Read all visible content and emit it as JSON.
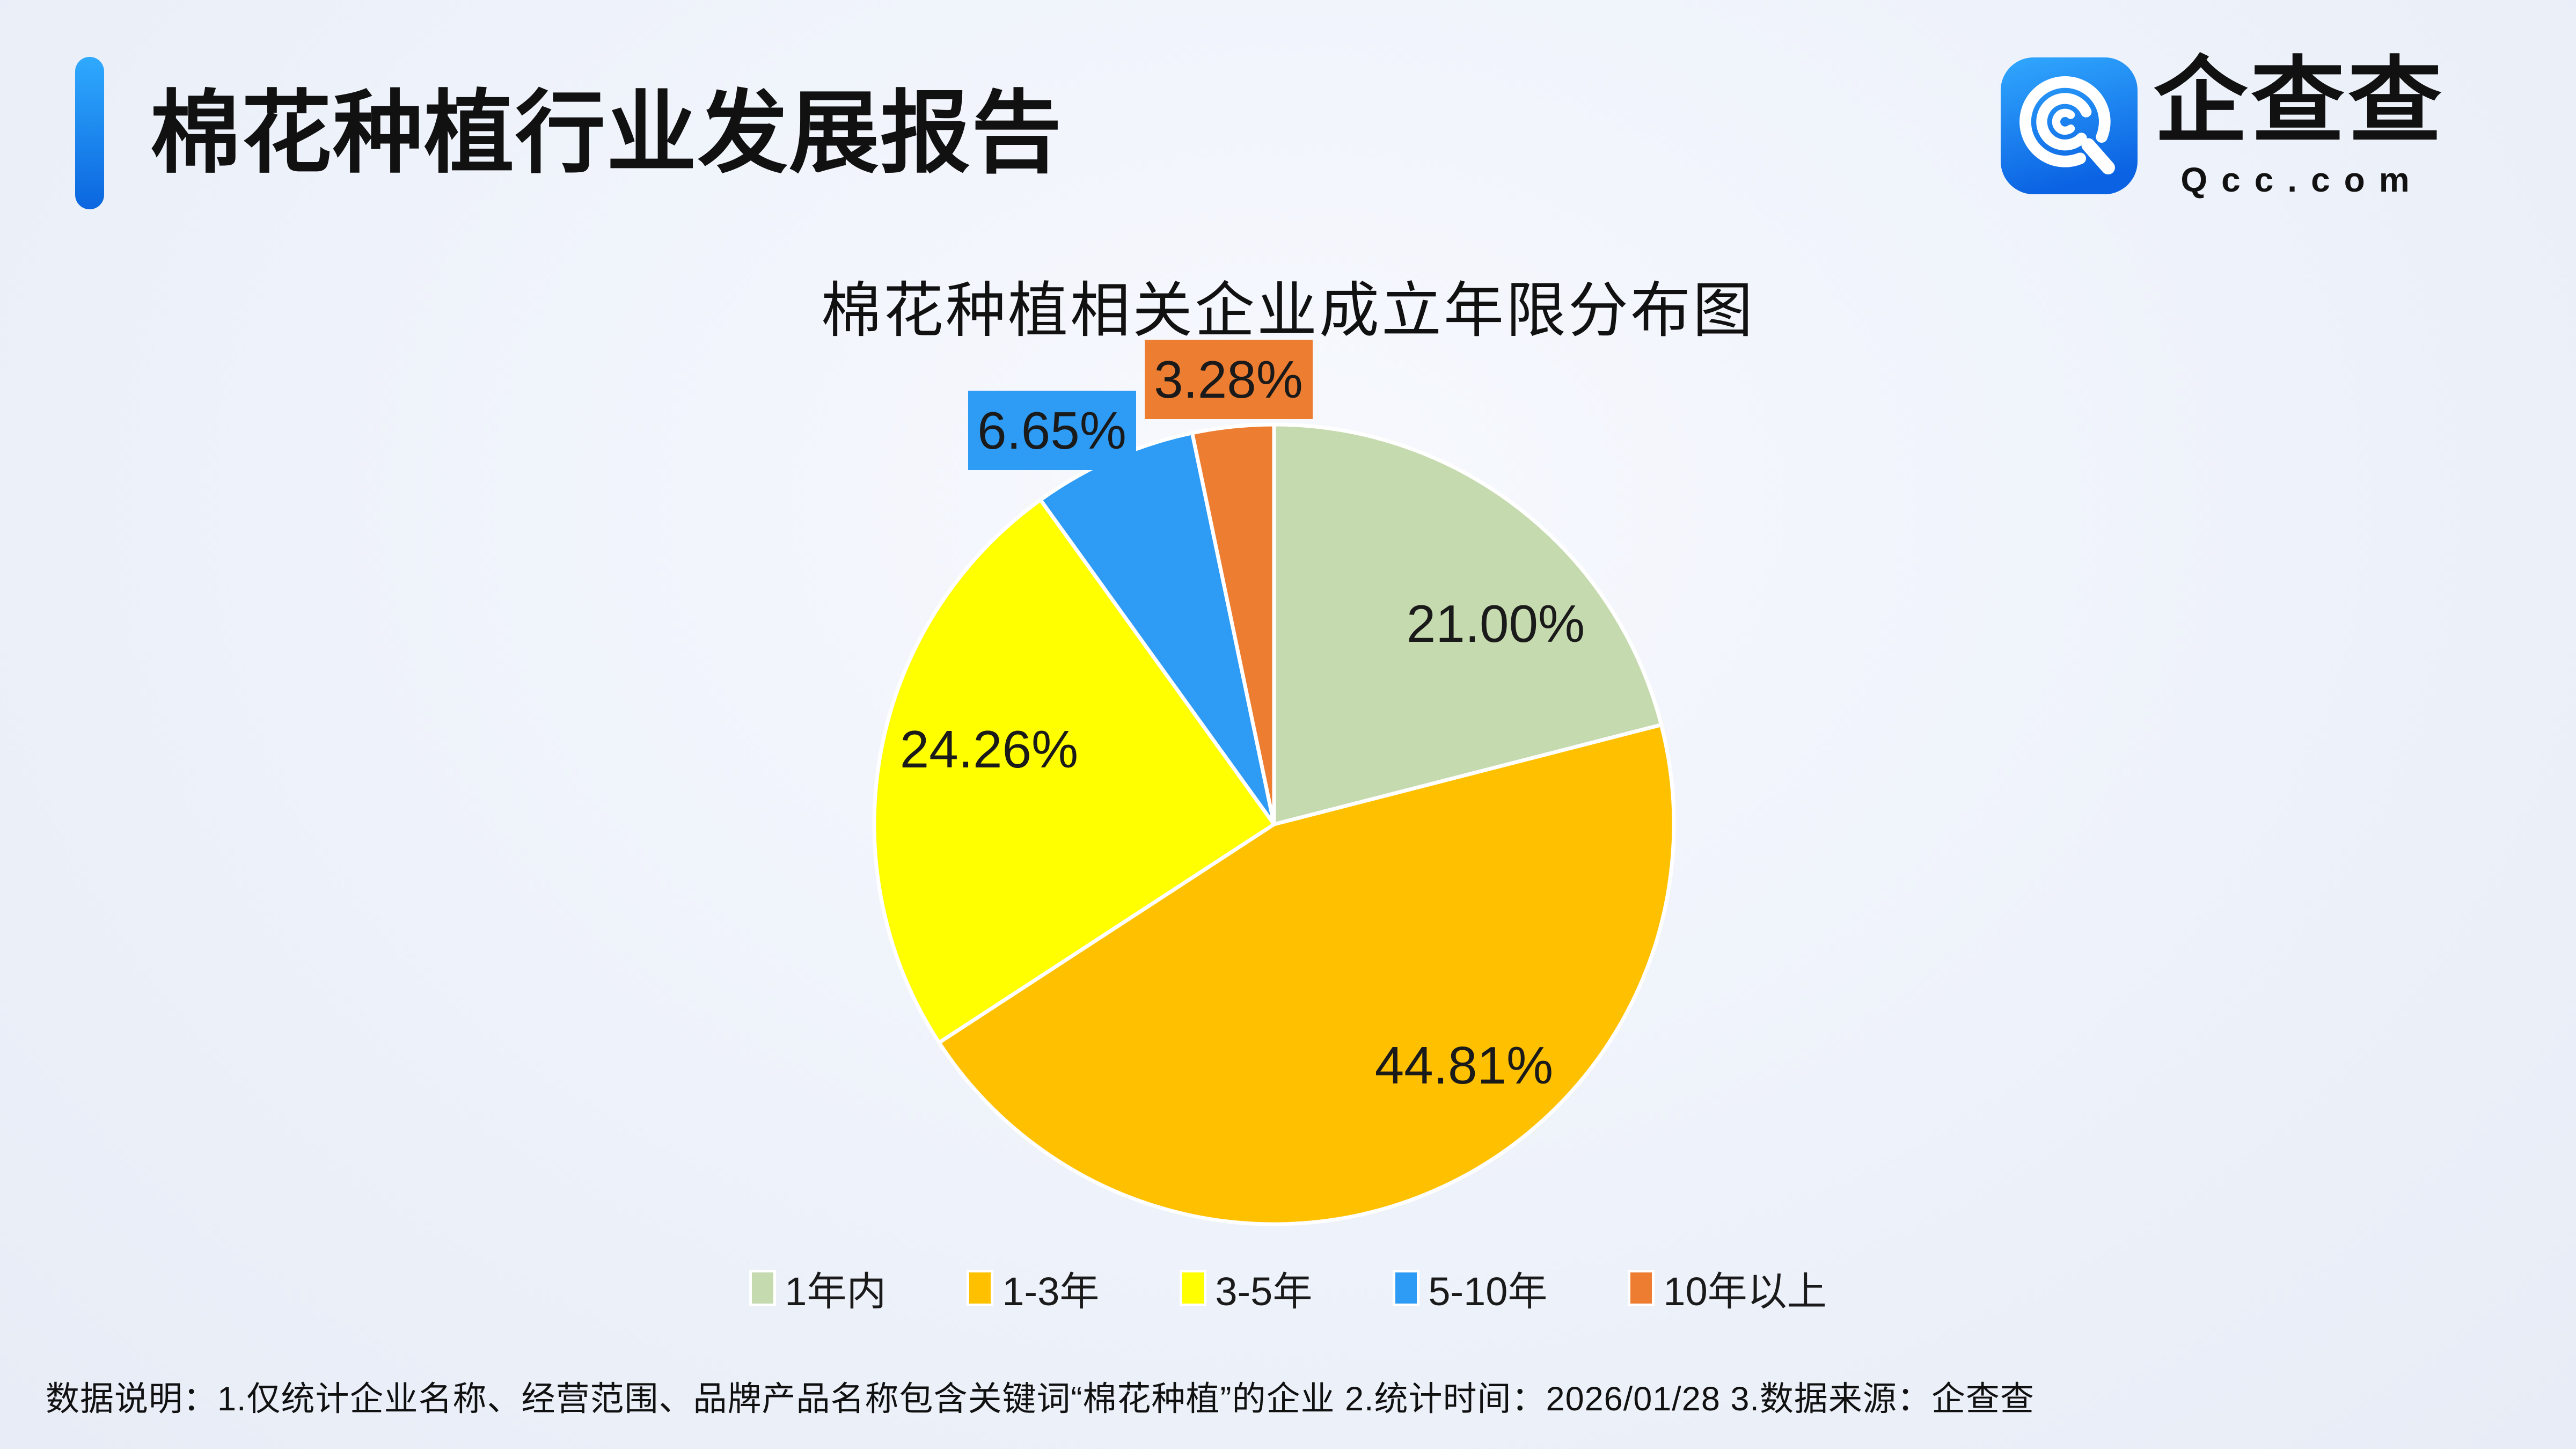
{
  "header": {
    "title": "棉花种植行业发展报告",
    "accent_color": "#1286F5"
  },
  "logo": {
    "name": "企查查",
    "domain": "Qcc.com",
    "icon": "qcc-q-spiral-icon",
    "icon_color": "#1D8CF5"
  },
  "chart_data": {
    "type": "pie",
    "title": "棉花种植相关企业成立年限分布图",
    "categories": [
      "1年内",
      "1-3年",
      "3-5年",
      "5-10年",
      "10年以上"
    ],
    "values": [
      21.0,
      44.81,
      24.26,
      6.65,
      3.28
    ],
    "labels": [
      "21.00%",
      "44.81%",
      "24.26%",
      "6.65%",
      "3.28%"
    ],
    "colors": [
      "#C6DAAF",
      "#FFC000",
      "#FFFF00",
      "#2E9BF4",
      "#ED7D31"
    ],
    "start_angle": "top",
    "direction": "clockwise",
    "legend_position": "bottom",
    "label_style": "inside-for-large-slices, boxed-callout-for-small-slices"
  },
  "footer": {
    "note": "数据说明：1.仅统计企业名称、经营范围、品牌产品名称包含关键词“棉花种植”的企业  2.统计时间：2026/01/28  3.数据来源：企查查"
  }
}
